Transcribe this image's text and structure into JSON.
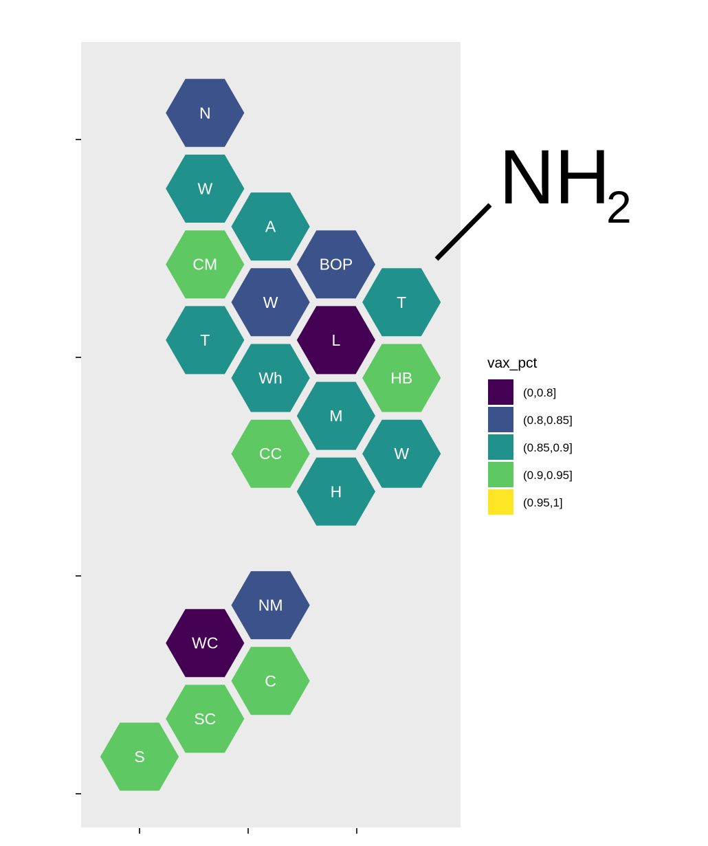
{
  "chart_data": {
    "type": "hexbin-map",
    "title": "",
    "xlabel": "",
    "ylabel": "",
    "x_ticks": [
      "",
      "",
      ""
    ],
    "y_ticks": [
      "",
      "",
      "",
      ""
    ],
    "legend": {
      "title": "vax_pct",
      "placement": "right",
      "items": [
        {
          "label": "(0,0.8]",
          "color": "#440154"
        },
        {
          "label": "(0.8,0.85]",
          "color": "#3b528b"
        },
        {
          "label": "(0.85,0.9]",
          "color": "#21918c"
        },
        {
          "label": "(0.9,0.95]",
          "color": "#5ec962"
        },
        {
          "label": "(0.95,1]",
          "color": "#fde725"
        }
      ]
    },
    "hexes": [
      {
        "label": "N",
        "col": 1,
        "row": 19,
        "category": "(0.8,0.85]"
      },
      {
        "label": "W",
        "col": 1,
        "row": 17,
        "category": "(0.85,0.9]"
      },
      {
        "label": "A",
        "col": 2,
        "row": 16,
        "category": "(0.85,0.9]"
      },
      {
        "label": "CM",
        "col": 1,
        "row": 15,
        "category": "(0.9,0.95]"
      },
      {
        "label": "BOP",
        "col": 3,
        "row": 15,
        "category": "(0.8,0.85]"
      },
      {
        "label": "W",
        "col": 2,
        "row": 14,
        "category": "(0.8,0.85]"
      },
      {
        "label": "T",
        "col": 4,
        "row": 14,
        "category": "(0.85,0.9]"
      },
      {
        "label": "T",
        "col": 1,
        "row": 13,
        "category": "(0.85,0.9]"
      },
      {
        "label": "L",
        "col": 3,
        "row": 13,
        "category": "(0,0.8]"
      },
      {
        "label": "Wh",
        "col": 2,
        "row": 12,
        "category": "(0.85,0.9]"
      },
      {
        "label": "HB",
        "col": 4,
        "row": 12,
        "category": "(0.9,0.95]"
      },
      {
        "label": "M",
        "col": 3,
        "row": 11,
        "category": "(0.85,0.9]"
      },
      {
        "label": "CC",
        "col": 2,
        "row": 10,
        "category": "(0.9,0.95]"
      },
      {
        "label": "W",
        "col": 4,
        "row": 10,
        "category": "(0.85,0.9]"
      },
      {
        "label": "H",
        "col": 3,
        "row": 9,
        "category": "(0.85,0.9]"
      },
      {
        "label": "NM",
        "col": 2,
        "row": 6,
        "category": "(0.8,0.85]"
      },
      {
        "label": "WC",
        "col": 1,
        "row": 5,
        "category": "(0,0.8]"
      },
      {
        "label": "C",
        "col": 2,
        "row": 4,
        "category": "(0.9,0.95]"
      },
      {
        "label": "SC",
        "col": 1,
        "row": 3,
        "category": "(0.9,0.95]"
      },
      {
        "label": "S",
        "col": 0,
        "row": 2,
        "category": "(0.9,0.95]"
      }
    ],
    "panel_background": "#ebebeb",
    "grid": false
  },
  "annotation": {
    "text": "NH",
    "subscript": "2"
  }
}
